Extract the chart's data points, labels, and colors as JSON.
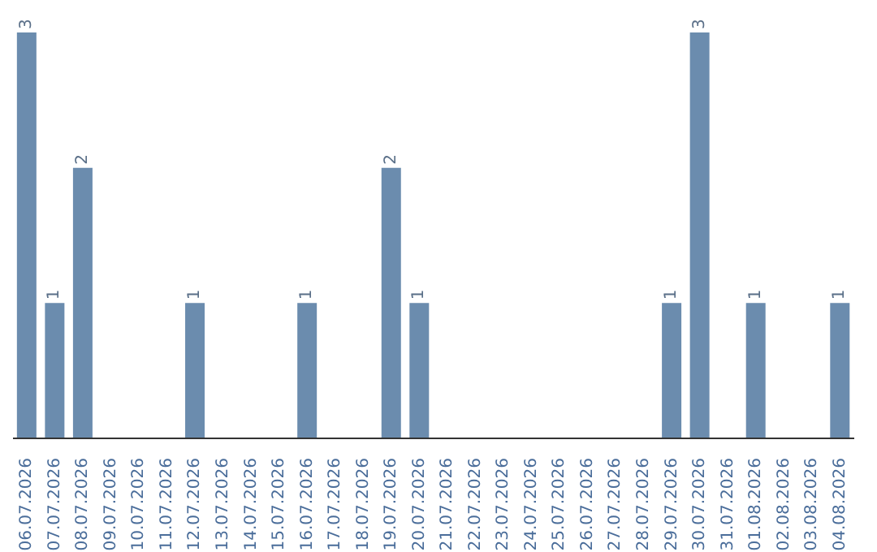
{
  "chart_data": {
    "type": "bar",
    "categories": [
      "06.07.2026",
      "07.07.2026",
      "08.07.2026",
      "09.07.2026",
      "10.07.2026",
      "11.07.2026",
      "12.07.2026",
      "13.07.2026",
      "14.07.2026",
      "15.07.2026",
      "16.07.2026",
      "17.07.2026",
      "18.07.2026",
      "19.07.2026",
      "20.07.2026",
      "21.07.2026",
      "22.07.2026",
      "23.07.2026",
      "24.07.2026",
      "25.07.2026",
      "26.07.2026",
      "27.07.2026",
      "28.07.2026",
      "29.07.2026",
      "30.07.2026",
      "31.07.2026",
      "01.08.2026",
      "02.08.2026",
      "03.08.2026",
      "04.08.2026"
    ],
    "values": [
      3,
      1,
      2,
      0,
      0,
      0,
      1,
      0,
      0,
      0,
      1,
      0,
      0,
      2,
      1,
      0,
      0,
      0,
      0,
      0,
      0,
      0,
      0,
      1,
      3,
      0,
      1,
      0,
      0,
      1
    ],
    "value_labels": [
      "3",
      "1",
      "2",
      null,
      null,
      null,
      "1",
      null,
      null,
      null,
      "1",
      null,
      null,
      "2",
      "1",
      null,
      null,
      null,
      null,
      null,
      null,
      null,
      null,
      "1",
      "3",
      null,
      "1",
      null,
      null,
      "1"
    ],
    "color": "#6b8cae"
  }
}
